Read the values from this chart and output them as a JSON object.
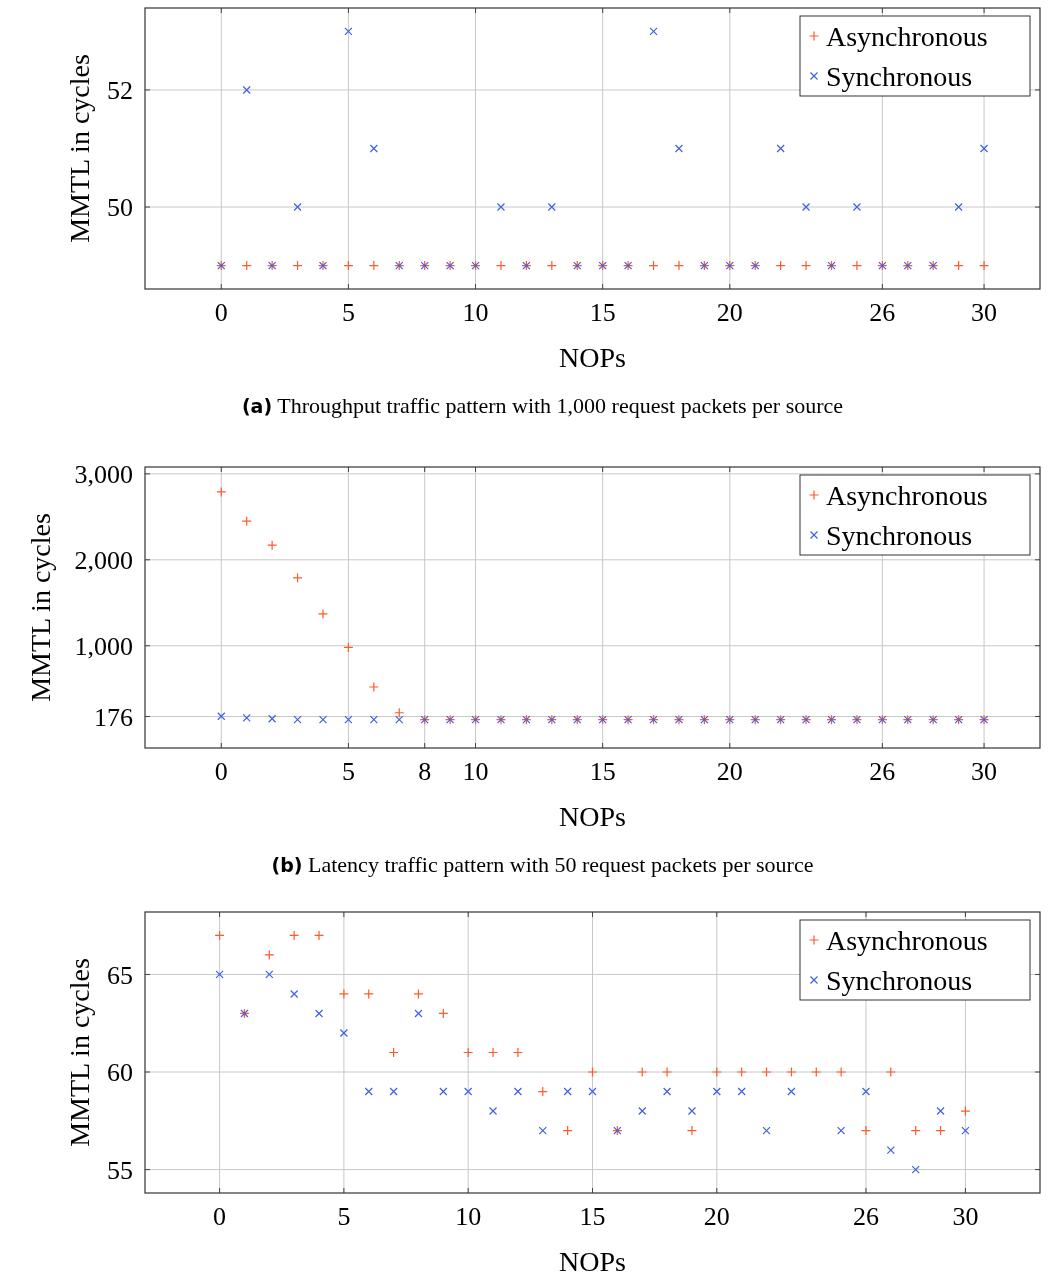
{
  "chart_data": [
    {
      "type": "scatter",
      "title": "(a) Throughput traffic pattern with 1,000 request packets per source",
      "xlabel": "NOPs",
      "ylabel": "MMTL in cycles",
      "x": [
        0,
        1,
        2,
        3,
        4,
        5,
        6,
        7,
        8,
        9,
        10,
        11,
        12,
        13,
        14,
        15,
        16,
        17,
        18,
        19,
        20,
        21,
        22,
        23,
        24,
        25,
        26,
        27,
        28,
        29,
        30
      ],
      "series": [
        {
          "name": "Asynchronous",
          "color": "#ff5a2a",
          "marker": "plus",
          "values": [
            49,
            49,
            49,
            49,
            49,
            49,
            49,
            49,
            49,
            49,
            49,
            49,
            49,
            49,
            49,
            49,
            49,
            49,
            49,
            49,
            49,
            49,
            49,
            49,
            49,
            49,
            49,
            49,
            49,
            49,
            49
          ]
        },
        {
          "name": "Synchronous",
          "color": "#4060e8",
          "marker": "cross",
          "values": [
            49,
            52,
            49,
            50,
            49,
            53,
            51,
            49,
            49,
            49,
            49,
            50,
            49,
            50,
            49,
            49,
            49,
            53,
            51,
            49,
            49,
            49,
            51,
            50,
            49,
            50,
            49,
            49,
            49,
            50,
            51
          ]
        }
      ],
      "xlim": [
        -3,
        32.2
      ],
      "xticks": [
        0,
        5,
        10,
        15,
        20,
        26,
        30
      ],
      "ylim": [
        48.6,
        53.4
      ],
      "yticks": [
        50,
        52
      ],
      "grid": true,
      "legend": "top right"
    },
    {
      "type": "scatter",
      "title": "(b) Latency traffic pattern with 50 request packets per source",
      "xlabel": "NOPs",
      "ylabel": "MMTL in cycles",
      "x": [
        0,
        1,
        2,
        3,
        4,
        5,
        6,
        7,
        8,
        9,
        10,
        11,
        12,
        13,
        14,
        15,
        16,
        17,
        18,
        19,
        20,
        21,
        22,
        23,
        24,
        25,
        26,
        27,
        28,
        29,
        30
      ],
      "series": [
        {
          "name": "Asynchronous",
          "color": "#ff5a2a",
          "marker": "plus",
          "values": [
            2790,
            2450,
            2170,
            1790,
            1370,
            980,
            520,
            220,
            140,
            140,
            140,
            140,
            140,
            140,
            140,
            140,
            140,
            140,
            140,
            140,
            140,
            140,
            140,
            140,
            140,
            140,
            140,
            140,
            140,
            140,
            140
          ]
        },
        {
          "name": "Synchronous",
          "color": "#4060e8",
          "marker": "cross",
          "values": [
            180,
            160,
            150,
            140,
            140,
            140,
            140,
            140,
            140,
            140,
            140,
            140,
            140,
            140,
            140,
            140,
            140,
            140,
            140,
            140,
            140,
            140,
            140,
            140,
            140,
            140,
            140,
            140,
            140,
            140,
            140
          ]
        }
      ],
      "xlim": [
        -3,
        32.2
      ],
      "xticks": [
        0,
        5,
        8,
        10,
        15,
        20,
        26,
        30
      ],
      "ylim": [
        -190,
        3080
      ],
      "yticks": [
        176,
        {
          "value": 1000,
          "label": "1,000"
        },
        {
          "value": 2000,
          "label": "2,000"
        },
        {
          "value": 3000,
          "label": "3,000"
        }
      ],
      "grid": true,
      "legend": "top right"
    },
    {
      "type": "scatter",
      "xlabel": "NOPs",
      "ylabel": "MMTL in cycles",
      "x": [
        0,
        1,
        2,
        3,
        4,
        5,
        6,
        7,
        8,
        9,
        10,
        11,
        12,
        13,
        14,
        15,
        16,
        17,
        18,
        19,
        20,
        21,
        22,
        23,
        24,
        25,
        26,
        27,
        28,
        29,
        30
      ],
      "series": [
        {
          "name": "Asynchronous",
          "color": "#ff5a2a",
          "marker": "plus",
          "values": [
            67,
            63,
            66,
            67,
            67,
            64,
            64,
            61,
            64,
            63,
            61,
            61,
            61,
            59,
            57,
            60,
            57,
            60,
            60,
            57,
            60,
            60,
            60,
            60,
            60,
            60,
            57,
            60,
            57,
            57,
            58
          ]
        },
        {
          "name": "Synchronous",
          "color": "#4060e8",
          "marker": "cross",
          "values": [
            65,
            63,
            65,
            64,
            63,
            62,
            59,
            59,
            63,
            59,
            59,
            58,
            59,
            57,
            59,
            59,
            57,
            58,
            59,
            58,
            59,
            59,
            57,
            59,
            null,
            57,
            59,
            56,
            55,
            58,
            57
          ]
        }
      ],
      "xlim": [
        -3,
        33
      ],
      "xticks": [
        0,
        5,
        10,
        15,
        20,
        26,
        30
      ],
      "ylim": [
        53.8,
        68.2
      ],
      "yticks": [
        55,
        60,
        65
      ],
      "grid": true,
      "legend": "top right"
    }
  ]
}
